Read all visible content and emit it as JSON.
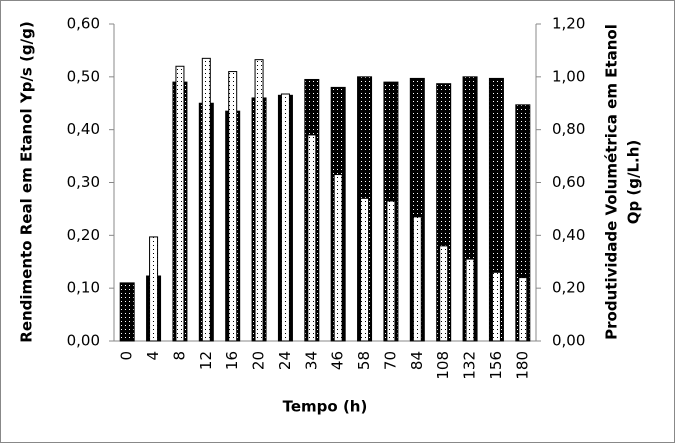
{
  "chart_data": {
    "type": "bar",
    "categories": [
      "0",
      "4",
      "8",
      "12",
      "16",
      "20",
      "24",
      "34",
      "46",
      "58",
      "70",
      "84",
      "108",
      "132",
      "156",
      "180"
    ],
    "xlabel": "Tempo (h)",
    "ylabel": "Rendimento Real em Etanol Yp/s (g/g)",
    "y2label": [
      "Produtividade Volumétrica em Etanol",
      "Qp  (g/L.h)"
    ],
    "ylim": [
      0,
      0.6
    ],
    "yticks": [
      {
        "value": 0,
        "label": "0,00"
      },
      {
        "value": 0.1,
        "label": "0,10"
      },
      {
        "value": 0.2,
        "label": "0,20"
      },
      {
        "value": 0.3,
        "label": "0,30"
      },
      {
        "value": 0.4,
        "label": "0,40"
      },
      {
        "value": 0.5,
        "label": "0,50"
      },
      {
        "value": 0.6,
        "label": "0,60"
      }
    ],
    "y2lim": [
      0,
      1.2
    ],
    "y2ticks": [
      {
        "value": 0,
        "label": "0,00"
      },
      {
        "value": 0.2,
        "label": "0,20"
      },
      {
        "value": 0.4,
        "label": "0,40"
      },
      {
        "value": 0.6,
        "label": "0,60"
      },
      {
        "value": 0.8,
        "label": "0,80"
      },
      {
        "value": 1.0,
        "label": "1,00"
      },
      {
        "value": 1.2,
        "label": "1,20"
      }
    ],
    "series": [
      {
        "color": "#000000",
        "values": [
          0.11,
          0.123,
          0.49,
          0.45,
          0.435,
          0.46,
          0.465,
          0.495,
          0.48,
          0.5,
          0.49,
          0.497,
          0.487,
          0.5,
          0.497,
          0.447
        ]
      },
      {
        "color": "#ffffff",
        "axis": "y2",
        "values": [
          null,
          0.394,
          1.04,
          1.07,
          1.02,
          1.065,
          0.935,
          0.78,
          0.63,
          0.54,
          0.53,
          0.47,
          0.36,
          0.31,
          0.26,
          0.24
        ]
      }
    ]
  }
}
